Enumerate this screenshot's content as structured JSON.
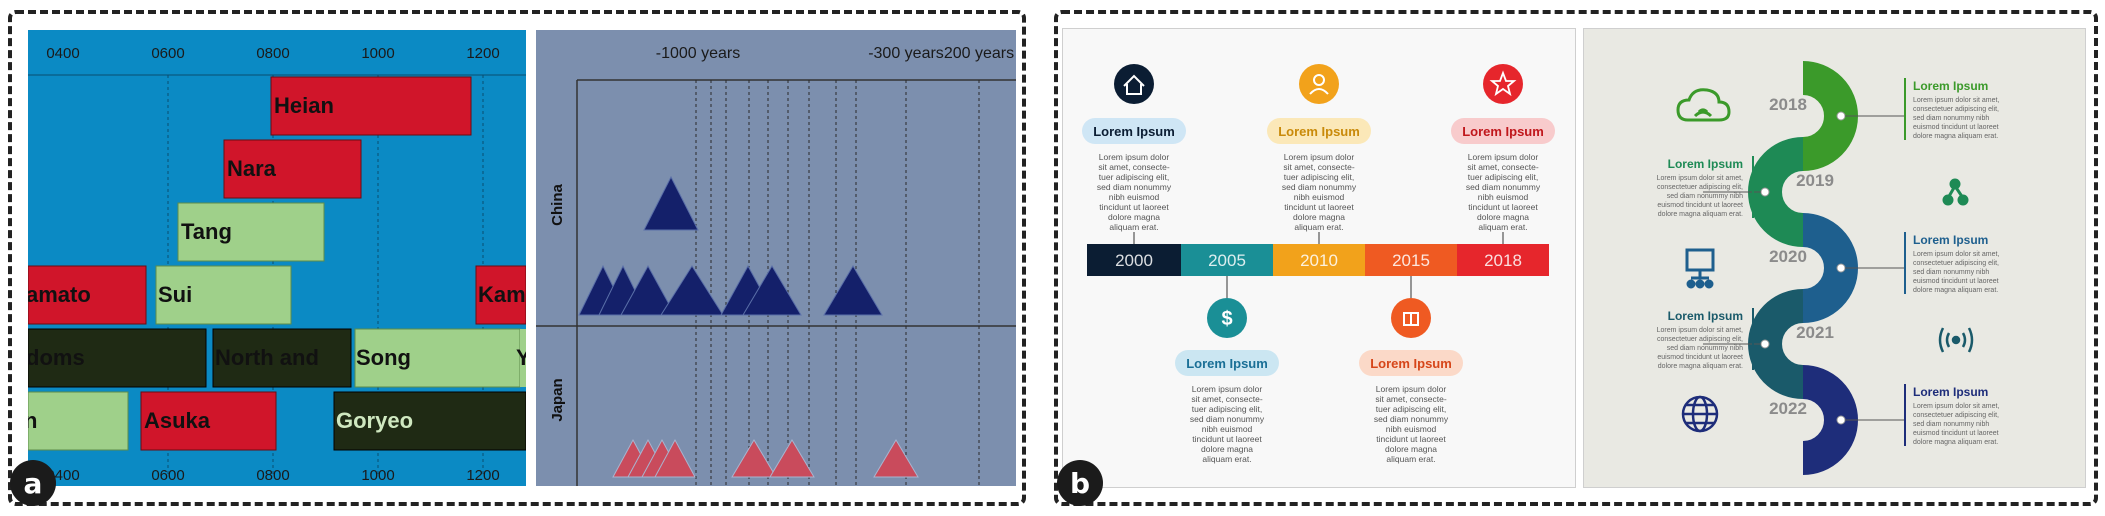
{
  "panel_a": {
    "badge": "a",
    "left": {
      "ticks_top": [
        "0400",
        "0600",
        "0800",
        "1000",
        "1200"
      ],
      "ticks_bottom": [
        "0400",
        "0600",
        "0800",
        "1000",
        "1200"
      ],
      "bars": [
        {
          "label": "Heian",
          "color": "#d0152a"
        },
        {
          "label": "Nara",
          "color": "#d0152a"
        },
        {
          "label": "Tang",
          "color": "#9fd08a"
        },
        {
          "label": "amato",
          "color": "#d0152a"
        },
        {
          "label": "Sui",
          "color": "#9fd08a"
        },
        {
          "label": "Kam",
          "color": "#d0152a"
        },
        {
          "label": "doms",
          "color": "#1f2a14"
        },
        {
          "label": "North and",
          "color": "#1f2a14"
        },
        {
          "label": "Song",
          "color": "#9fd08a"
        },
        {
          "label": "Y",
          "color": "#9fd08a"
        },
        {
          "label": "n",
          "color": "#9fd08a"
        },
        {
          "label": "Asuka",
          "color": "#d0152a"
        },
        {
          "label": "Goryeo",
          "color": "#1f2a14"
        }
      ]
    },
    "right": {
      "ticks": [
        "-1000 years",
        "-300 years",
        "200 years"
      ],
      "rows": [
        "China",
        "Japan"
      ]
    }
  },
  "panel_b": {
    "badge": "b",
    "left": {
      "years": [
        "2000",
        "2005",
        "2010",
        "2015",
        "2018"
      ],
      "colors": [
        "#0b1d33",
        "#1a8f96",
        "#f2a21b",
        "#ef5a22",
        "#e6262c"
      ],
      "top_cards": [
        {
          "title": "Lorem Ipsum",
          "color": "#0b1d33",
          "icon": "home-icon"
        },
        {
          "title": "Lorem Ipsum",
          "color": "#f2a21b",
          "icon": "user-icon"
        },
        {
          "title": "Lorem Ipsum",
          "color": "#e6262c",
          "icon": "star-icon"
        }
      ],
      "bottom_cards": [
        {
          "title": "Lorem Ipsum",
          "color": "#1a8f96",
          "icon": "dollar-icon"
        },
        {
          "title": "Lorem Ipsum",
          "color": "#ef5a22",
          "icon": "gift-icon"
        }
      ],
      "body_lines": [
        "Lorem ipsum dolor",
        "sit amet, consecte-",
        "tuer adipiscing elit,",
        "sed diam nonummy",
        "nibh euismod",
        "tincidunt ut laoreet",
        "dolore magna",
        "aliquam erat."
      ]
    },
    "right": {
      "items": [
        {
          "year": "2018",
          "title": "Lorem Ipsum",
          "color": "#3b9a2a",
          "side": "right",
          "icon": "cloud-icon"
        },
        {
          "year": "2019",
          "title": "Lorem Ipsum",
          "color": "#1e8a55",
          "side": "left",
          "icon": "share-icon"
        },
        {
          "year": "2020",
          "title": "Lorem Ipsum",
          "color": "#1e5f8e",
          "side": "right",
          "icon": "hierarchy-icon"
        },
        {
          "year": "2021",
          "title": "Lorem Ipsum",
          "color": "#1a5a6a",
          "side": "left",
          "icon": "broadcast-icon"
        },
        {
          "year": "2022",
          "title": "Lorem Ipsum",
          "color": "#1e2d7a",
          "side": "right",
          "icon": "globe-icon"
        }
      ],
      "line_text": [
        "Lorem ipsum dolor sit amet,",
        "consectetuer adipiscing elit,",
        "sed diam nonummy nibh",
        "euismod tincidunt ut laoreet",
        "dolore magna aliquam erat."
      ]
    }
  }
}
